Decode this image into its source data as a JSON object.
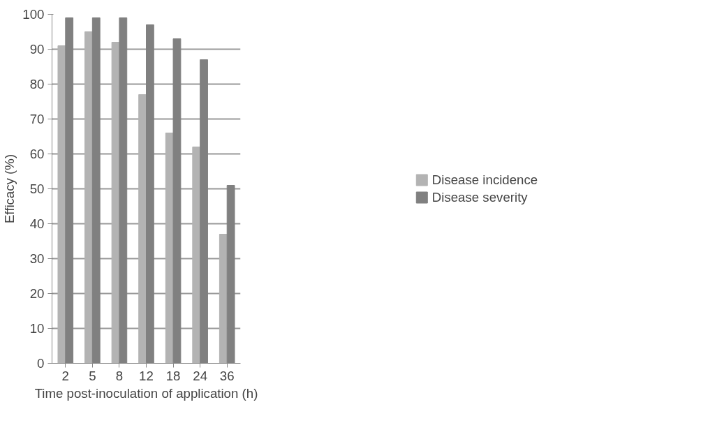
{
  "chart_data": {
    "type": "bar",
    "xlabel": "Time post-inoculation of application (h)",
    "ylabel": "Efficacy (%)",
    "categories": [
      "2",
      "5",
      "8",
      "12",
      "18",
      "24",
      "36"
    ],
    "series": [
      {
        "name": "Disease incidence",
        "color": "#b3b3b3",
        "values": [
          91,
          95,
          92,
          77,
          66,
          62,
          37
        ]
      },
      {
        "name": "Disease severity",
        "color": "#808080",
        "values": [
          99,
          99,
          99,
          97,
          93,
          87,
          51
        ]
      }
    ],
    "ylim": [
      0,
      100
    ],
    "yticks": [
      0,
      10,
      20,
      30,
      40,
      50,
      60,
      70,
      80,
      90,
      100
    ],
    "grid": "y",
    "legend": "right"
  }
}
